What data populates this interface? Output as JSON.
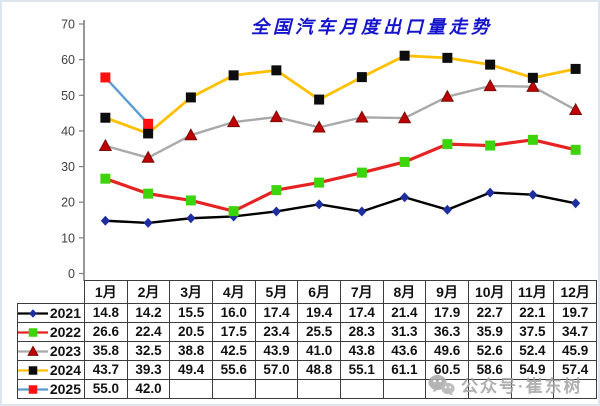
{
  "title": {
    "text": "全国汽车月度出口量走势",
    "color": "#1414cc"
  },
  "watermark": {
    "text": "公众号·崔东树",
    "color": "#a3a3a3"
  },
  "colors": {
    "axis": "#7f7f7f",
    "tick_label": "#3f3f3f",
    "table_border": "#3c3c3c"
  },
  "chart_data": {
    "type": "line",
    "title": "全国汽车月度出口量走势",
    "xlabel": "",
    "ylabel": "",
    "ylim": [
      0,
      70
    ],
    "yticks": [
      0,
      10,
      20,
      30,
      40,
      50,
      60,
      70
    ],
    "grid": false,
    "legend_position": "table-left-column",
    "categories": [
      "1月",
      "2月",
      "3月",
      "4月",
      "5月",
      "6月",
      "7月",
      "8月",
      "9月",
      "10月",
      "11月",
      "12月"
    ],
    "series": [
      {
        "name": "2021",
        "marker": "diamond",
        "marker_color": "#1f2e9e",
        "line_color": "#000000",
        "line_width": 2.4,
        "values": [
          14.8,
          14.2,
          15.5,
          16.0,
          17.4,
          19.4,
          17.4,
          21.4,
          17.9,
          22.7,
          22.1,
          19.7
        ]
      },
      {
        "name": "2022",
        "marker": "square",
        "marker_color": "#3ed40c",
        "line_color": "#e62222",
        "line_width": 3.2,
        "values": [
          26.6,
          22.4,
          20.5,
          17.5,
          23.4,
          25.5,
          28.3,
          31.3,
          36.3,
          35.9,
          37.5,
          34.7
        ]
      },
      {
        "name": "2023",
        "marker": "triangle",
        "marker_color": "#c00000",
        "line_color": "#a9a9a9",
        "line_width": 2.4,
        "values": [
          35.8,
          32.5,
          38.8,
          42.5,
          43.9,
          41.0,
          43.8,
          43.6,
          49.6,
          52.6,
          52.4,
          45.9
        ]
      },
      {
        "name": "2024",
        "marker": "square",
        "marker_color": "#0d0d0d",
        "line_color": "#ffc000",
        "line_width": 2.8,
        "values": [
          43.7,
          39.3,
          49.4,
          55.6,
          57.0,
          48.8,
          55.1,
          61.1,
          60.5,
          58.6,
          54.9,
          57.4
        ]
      },
      {
        "name": "2025",
        "marker": "square",
        "marker_color": "#ff1111",
        "line_color": "#5b9bd5",
        "line_width": 2.4,
        "values": [
          55.0,
          42.0,
          null,
          null,
          null,
          null,
          null,
          null,
          null,
          null,
          null,
          null
        ]
      }
    ]
  }
}
